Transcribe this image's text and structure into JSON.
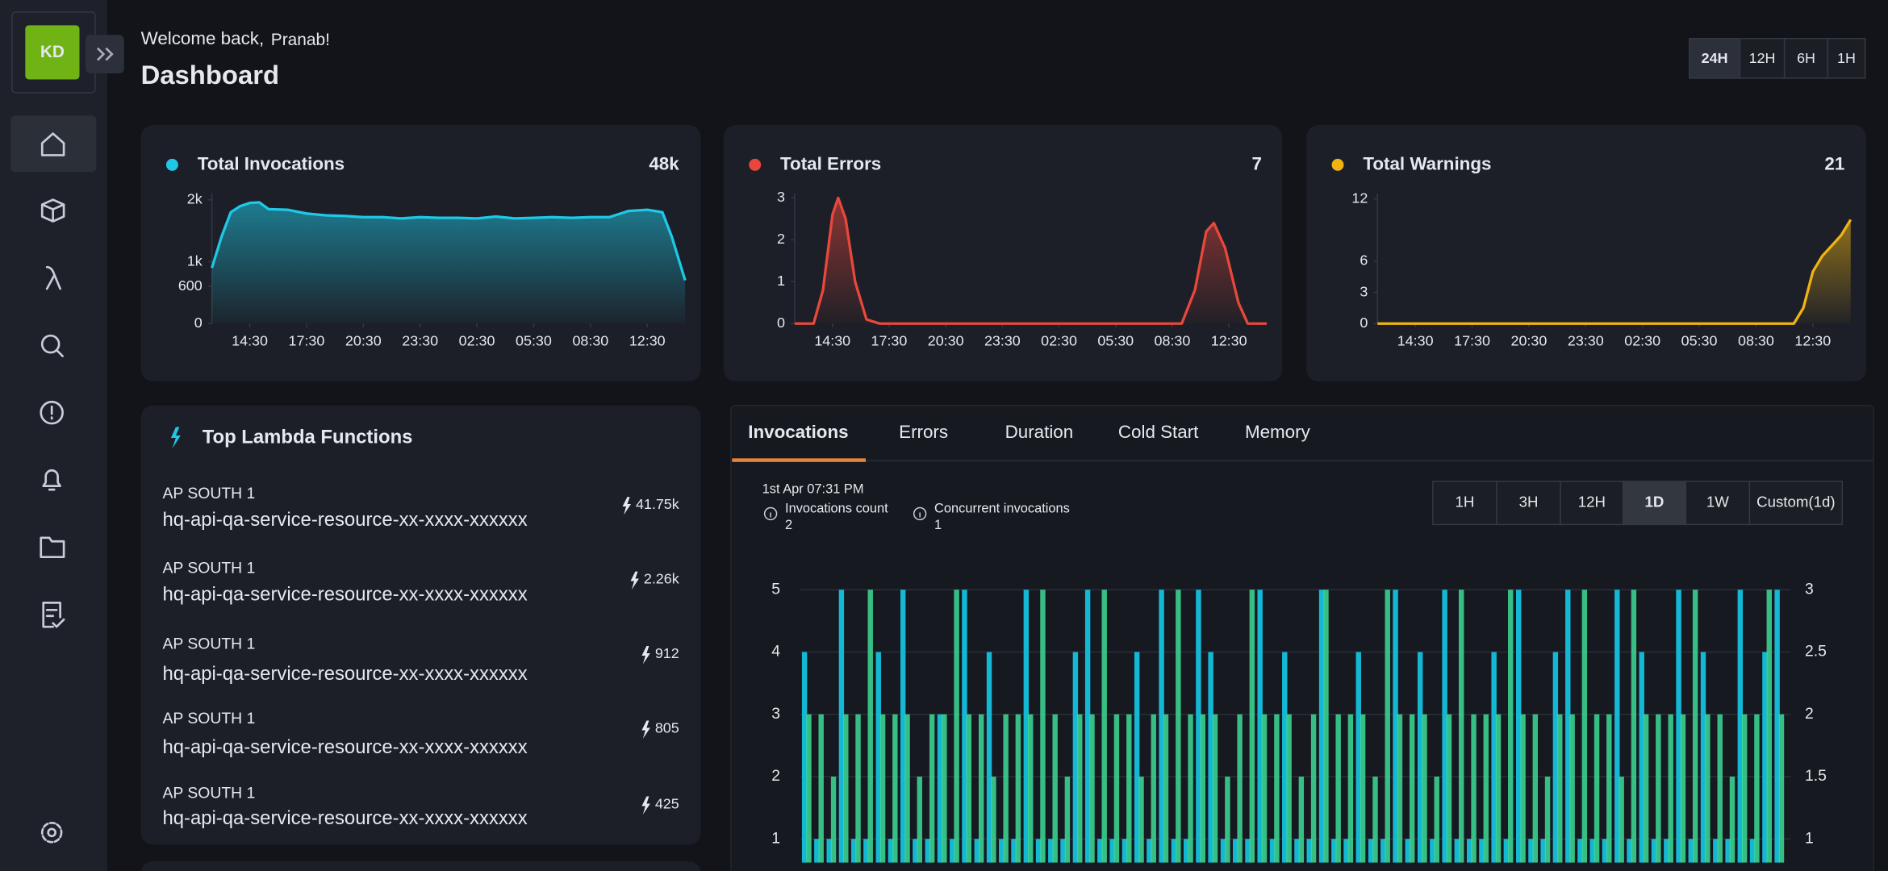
{
  "sidebar": {
    "avatar": "KD"
  },
  "header": {
    "greeting": "Welcome back,",
    "user": "Pranab!",
    "title": "Dashboard",
    "ranges": [
      "24H",
      "12H",
      "6H",
      "1H"
    ],
    "active_range": 0
  },
  "chart_data": [
    {
      "type": "area",
      "title": "Total Invocations",
      "total": "48k",
      "color": "#1ec8e6",
      "x": [
        0,
        0.5,
        1,
        1.5,
        2,
        2.5,
        3,
        4,
        5,
        6,
        7,
        8,
        9,
        10,
        11,
        12,
        13,
        14,
        15,
        16,
        17,
        18,
        19,
        20,
        21,
        22,
        23,
        23.8,
        24.3,
        25
      ],
      "values": [
        900,
        1400,
        1800,
        1900,
        1950,
        1960,
        1850,
        1840,
        1780,
        1750,
        1740,
        1720,
        1720,
        1700,
        1720,
        1710,
        1710,
        1700,
        1730,
        1700,
        1710,
        1720,
        1710,
        1720,
        1720,
        1820,
        1840,
        1800,
        1400,
        700
      ],
      "xlim": [
        0,
        25
      ],
      "xticks": [
        {
          "value": 2,
          "label": "14:30"
        },
        {
          "value": 5,
          "label": "17:30"
        },
        {
          "value": 8,
          "label": "20:30"
        },
        {
          "value": 11,
          "label": "23:30"
        },
        {
          "value": 14,
          "label": "02:30"
        },
        {
          "value": 17,
          "label": "05:30"
        },
        {
          "value": 20,
          "label": "08:30"
        },
        {
          "value": 23,
          "label": "12:30"
        }
      ],
      "ylim": [
        0,
        2100
      ],
      "yticks": [
        0,
        600,
        {
          "value": 1000,
          "label": "1k"
        },
        {
          "value": 2000,
          "label": "2k"
        }
      ]
    },
    {
      "type": "area",
      "title": "Total Errors",
      "total": "7",
      "color": "#e8483c",
      "x": [
        0,
        1,
        1.5,
        2,
        2.3,
        2.7,
        3.2,
        3.8,
        4.5,
        20.5,
        21.2,
        21.8,
        22.2,
        22.8,
        23.5,
        24,
        25
      ],
      "values": [
        0,
        0,
        0.8,
        2.6,
        3,
        2.5,
        1,
        0.1,
        0,
        0,
        0.8,
        2.2,
        2.4,
        1.8,
        0.5,
        0,
        0
      ],
      "xlim": [
        0,
        25
      ],
      "xticks": [
        {
          "value": 2,
          "label": "14:30"
        },
        {
          "value": 5,
          "label": "17:30"
        },
        {
          "value": 8,
          "label": "20:30"
        },
        {
          "value": 11,
          "label": "23:30"
        },
        {
          "value": 14,
          "label": "02:30"
        },
        {
          "value": 17,
          "label": "05:30"
        },
        {
          "value": 20,
          "label": "08:30"
        },
        {
          "value": 23,
          "label": "12:30"
        }
      ],
      "ylim": [
        0,
        3.1
      ],
      "yticks": [
        0,
        1,
        2,
        3
      ]
    },
    {
      "type": "area",
      "title": "Total Warnings",
      "total": "21",
      "color": "#f0b313",
      "x": [
        0,
        22,
        22.5,
        23,
        23.5,
        24,
        24.5,
        25
      ],
      "values": [
        0,
        0,
        1.5,
        5,
        6.5,
        7.5,
        8.5,
        10
      ],
      "xlim": [
        0,
        25
      ],
      "xticks": [
        {
          "value": 2,
          "label": "14:30"
        },
        {
          "value": 5,
          "label": "17:30"
        },
        {
          "value": 8,
          "label": "20:30"
        },
        {
          "value": 11,
          "label": "23:30"
        },
        {
          "value": 14,
          "label": "02:30"
        },
        {
          "value": 17,
          "label": "05:30"
        },
        {
          "value": 20,
          "label": "08:30"
        },
        {
          "value": 23,
          "label": "12:30"
        }
      ],
      "ylim": [
        0,
        12.5
      ],
      "yticks": [
        0,
        3,
        6,
        12
      ]
    },
    {
      "type": "bar",
      "grid": true,
      "ylim": [
        0.62,
        5.1
      ],
      "yticks": [
        1,
        2,
        3,
        4,
        5
      ],
      "y2lim": [
        0.81,
        3.05
      ],
      "y2ticks": [
        1,
        1.5,
        2,
        2.5,
        3
      ],
      "series": [
        {
          "name": "Invocations count",
          "color": "#14b8d4",
          "values": [
            4,
            1,
            1,
            5,
            1,
            1,
            4,
            1,
            5,
            1,
            1,
            3,
            1,
            5,
            1,
            4,
            1,
            1,
            5,
            1,
            1,
            1,
            4,
            5,
            1,
            1,
            1,
            4,
            1,
            5,
            1,
            1,
            5,
            4,
            1,
            1,
            1,
            5,
            1,
            4,
            1,
            1,
            5,
            1,
            1,
            4,
            1,
            1,
            5,
            1,
            4,
            1,
            5,
            1,
            1,
            1,
            4,
            1,
            5,
            1,
            1,
            4,
            5,
            1,
            1,
            1,
            5,
            1,
            4,
            1,
            1,
            5,
            1,
            4,
            1,
            1,
            5,
            1,
            4,
            5
          ]
        },
        {
          "name": "Concurrent invocations",
          "color": "#3ddc97",
          "axis": "y2",
          "values": [
            2,
            2,
            1.5,
            2,
            2,
            3,
            2,
            2,
            2,
            1.5,
            2,
            2,
            3,
            2,
            2,
            1.5,
            2,
            2,
            2,
            3,
            2,
            1.5,
            2,
            2,
            3,
            2,
            2,
            1.5,
            2,
            2,
            3,
            2,
            2,
            2,
            1.5,
            2,
            3,
            2,
            2,
            2,
            1.5,
            2,
            3,
            2,
            2,
            2,
            1.5,
            3,
            2,
            2,
            2,
            1.5,
            2,
            3,
            2,
            2,
            2,
            3,
            2,
            2,
            1.5,
            2,
            2,
            3,
            2,
            2,
            1.5,
            3,
            2,
            2,
            2,
            2,
            3,
            2,
            2,
            1.5,
            2,
            2,
            3,
            2
          ]
        }
      ]
    }
  ],
  "top_functions": {
    "title": "Top Lambda Functions",
    "items": [
      {
        "region": "AP SOUTH 1",
        "name": "hq-api-qa-service-resource-xx-xxxx-xxxxxx",
        "count": "41.75k"
      },
      {
        "region": "AP SOUTH 1",
        "name": "hq-api-qa-service-resource-xx-xxxx-xxxxxx",
        "count": "2.26k"
      },
      {
        "region": "AP SOUTH 1",
        "name": "hq-api-qa-service-resource-xx-xxxx-xxxxxx",
        "count": "912"
      },
      {
        "region": "AP SOUTH 1",
        "name": "hq-api-qa-service-resource-xx-xxxx-xxxxxx",
        "count": "805"
      },
      {
        "region": "AP SOUTH 1",
        "name": "hq-api-qa-service-resource-xx-xxxx-xxxxxx",
        "count": "425"
      }
    ]
  },
  "tabs": {
    "items": [
      "Invocations",
      "Errors",
      "Duration",
      "Cold Start",
      "Memory"
    ],
    "active": 0
  },
  "detail": {
    "ranges": [
      "1H",
      "3H",
      "12H",
      "1D",
      "1W",
      "Custom(1d)"
    ],
    "active_range": 3,
    "tooltip": {
      "date": "1st Apr 07:31 PM",
      "values": [
        2,
        1
      ]
    }
  }
}
